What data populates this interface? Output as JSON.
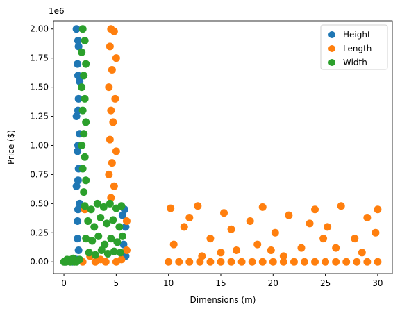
{
  "chart_data": {
    "type": "scatter",
    "xlabel": "Dimensions (m)",
    "ylabel": "Price ($)",
    "y_offset_label": "1e6",
    "xlim": [
      -1,
      31.4
    ],
    "ylim": [
      -0.1,
      2.07
    ],
    "xticks": [
      0,
      5,
      10,
      15,
      20,
      25,
      30
    ],
    "yticks": [
      {
        "value": 0,
        "label": "0.00"
      },
      {
        "value": 0.25,
        "label": "0.25"
      },
      {
        "value": 0.5,
        "label": "0.50"
      },
      {
        "value": 0.75,
        "label": "0.75"
      },
      {
        "value": 1,
        "label": "1.00"
      },
      {
        "value": 1.25,
        "label": "1.25"
      },
      {
        "value": 1.5,
        "label": "1.50"
      },
      {
        "value": 1.75,
        "label": "1.75"
      },
      {
        "value": 2,
        "label": "2.00"
      }
    ],
    "legend": "upper right",
    "series": [
      {
        "name": "Height",
        "color": "#1f77b4",
        "x": [
          1.2,
          1.4,
          1.3,
          1.5,
          1.4,
          1.2,
          1.5,
          1.3,
          1.4,
          1.2,
          1.5,
          1.3,
          1.3,
          1.4,
          1.35,
          1.35,
          1.35,
          1.35,
          1.35,
          1.35,
          5.8,
          5.9,
          5.7,
          5.9,
          5.6,
          0.1,
          0.4,
          0.8,
          1.2
        ],
        "values": [
          2.0,
          1.85,
          1.7,
          1.55,
          1.4,
          1.25,
          1.1,
          0.95,
          0.8,
          0.65,
          0.5,
          0.35,
          0.2,
          0.1,
          1.9,
          1.6,
          1.3,
          1.0,
          0.7,
          0.45,
          0.45,
          0.3,
          0.15,
          0.05,
          0.4,
          0,
          0.01,
          0,
          0.02
        ]
      },
      {
        "name": "Length",
        "color": "#ff7f0e",
        "x": [
          4.5,
          4.8,
          4.4,
          5.0,
          4.6,
          4.3,
          4.9,
          4.5,
          4.7,
          4.4,
          5.0,
          4.6,
          4.3,
          4.8,
          4.5,
          2.0,
          2.5,
          3.0,
          3.5,
          4.0,
          5.5,
          6.0,
          6.0,
          1.8,
          5.0,
          10,
          11,
          12,
          13,
          14,
          15,
          16,
          17,
          18,
          19,
          20,
          21,
          22,
          23,
          24,
          25,
          26,
          27,
          28,
          29,
          30,
          10.2,
          11.5,
          12.8,
          14.0,
          15.3,
          16.5,
          17.8,
          19.0,
          20.2,
          21.5,
          22.7,
          24.0,
          25.2,
          26.5,
          27.8,
          29.0,
          30.0,
          10.5,
          13.2,
          16.0,
          18.5,
          21.0,
          23.5,
          26.0,
          28.5,
          12.0,
          19.8,
          29.8,
          15.0,
          24.8
        ],
        "values": [
          2.0,
          1.98,
          1.85,
          1.75,
          1.65,
          1.5,
          1.4,
          1.3,
          1.2,
          1.05,
          0.95,
          0.85,
          0.75,
          0.65,
          0.55,
          0.45,
          0.05,
          0,
          0.02,
          0,
          0.02,
          0.1,
          0.35,
          0,
          0,
          0,
          0,
          0,
          0,
          0,
          0,
          0,
          0,
          0,
          0,
          0,
          0,
          0,
          0,
          0,
          0,
          0,
          0,
          0,
          0,
          0,
          0.46,
          0.3,
          0.48,
          0.2,
          0.42,
          0.1,
          0.35,
          0.47,
          0.25,
          0.4,
          0.12,
          0.45,
          0.3,
          0.48,
          0.2,
          0.38,
          0.45,
          0.15,
          0.05,
          0.28,
          0.15,
          0.05,
          0.33,
          0.12,
          0.08,
          0.38,
          0.1,
          0.25,
          0.08,
          0.2
        ]
      },
      {
        "name": "Width",
        "color": "#2ca02c",
        "x": [
          1.8,
          2.0,
          1.7,
          2.1,
          1.9,
          1.7,
          2.0,
          1.8,
          2.1,
          1.9,
          1.7,
          2.0,
          1.8,
          2.1,
          1.9,
          2.0,
          2.6,
          3.2,
          3.8,
          4.4,
          5.0,
          5.5,
          2.3,
          2.9,
          3.5,
          4.1,
          4.7,
          5.3,
          2.1,
          2.7,
          3.3,
          3.9,
          4.5,
          5.1,
          5.6,
          2.4,
          3.0,
          3.6,
          4.2,
          4.8,
          5.4,
          0,
          0.3,
          0.6,
          0.9,
          1.2,
          1.5,
          0.2,
          0.7,
          1.0
        ],
        "values": [
          2.0,
          1.9,
          1.8,
          1.7,
          1.6,
          1.5,
          1.4,
          1.3,
          1.2,
          1.1,
          1.0,
          0.9,
          0.8,
          0.7,
          0.6,
          0.48,
          0.45,
          0.5,
          0.47,
          0.5,
          0.46,
          0.48,
          0.35,
          0.3,
          0.38,
          0.33,
          0.36,
          0.3,
          0.2,
          0.18,
          0.22,
          0.15,
          0.2,
          0.17,
          0.22,
          0.08,
          0.06,
          0.1,
          0.07,
          0.09,
          0.08,
          0,
          0.02,
          0,
          0.03,
          0,
          0.02,
          0,
          0.02,
          0
        ]
      }
    ]
  }
}
